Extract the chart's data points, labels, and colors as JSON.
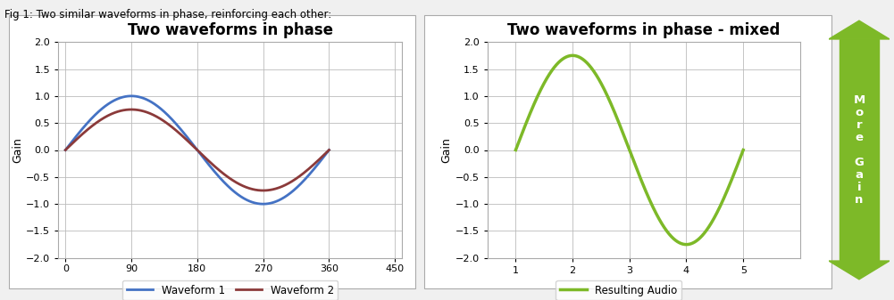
{
  "fig_label": "Fig 1: Two similar waveforms in phase, reinforcing each other:",
  "fig_label_fontsize": 8.5,
  "chart1": {
    "title": "Two waveforms in phase",
    "title_fontsize": 12,
    "ylabel": "Gain",
    "ylabel_fontsize": 9,
    "xlim": [
      -10,
      460
    ],
    "ylim": [
      -2,
      2
    ],
    "xticks": [
      0,
      90,
      180,
      270,
      360,
      450
    ],
    "yticks": [
      -2,
      -1.5,
      -1,
      -0.5,
      0,
      0.5,
      1,
      1.5,
      2
    ],
    "waveform1_color": "#4472C4",
    "waveform2_color": "#8B3A3A",
    "waveform1_label": "Waveform 1",
    "waveform2_label": "Waveform 2",
    "waveform1_amp": 1.0,
    "waveform2_amp": 0.75,
    "background": "#FFFFFF",
    "grid_color": "#BBBBBB",
    "border_color": "#AAAAAA"
  },
  "chart2": {
    "title": "Two waveforms in phase - mixed",
    "title_fontsize": 12,
    "ylabel": "Gain",
    "ylabel_fontsize": 9,
    "xlim": [
      0.5,
      6.0
    ],
    "ylim": [
      -2,
      2
    ],
    "xticks": [
      1,
      2,
      3,
      4,
      5
    ],
    "yticks": [
      -2,
      -1.5,
      -1,
      -0.5,
      0,
      0.5,
      1,
      1.5,
      2
    ],
    "waveform_color": "#7DB928",
    "waveform_label": "Resulting Audio",
    "waveform_amp": 1.75,
    "waveform_trough": -1.72,
    "background": "#FFFFFF",
    "grid_color": "#BBBBBB",
    "border_color": "#AAAAAA",
    "arrow_color": "#7DB928",
    "arrow_text_lines": [
      "M",
      "o",
      "r",
      "e",
      "",
      "G",
      "a",
      "i",
      "n"
    ],
    "arrow_text_color": "#FFFFFF",
    "arrow_fontsize": 10
  },
  "bg_color": "#F0F0F0"
}
